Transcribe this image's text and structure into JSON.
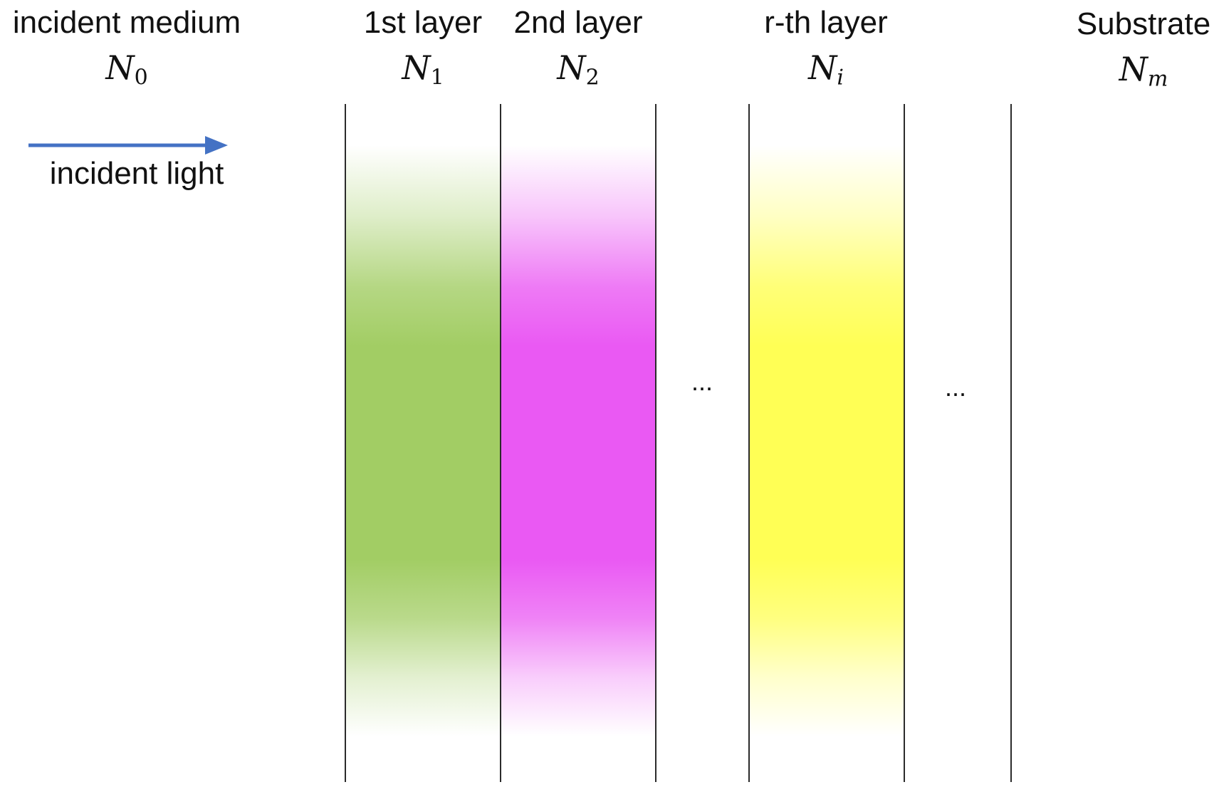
{
  "headers": {
    "incident_medium": {
      "label": "incident medium",
      "symbol": "N",
      "sub": "0"
    },
    "layer1": {
      "label": "1st layer",
      "symbol": "N",
      "sub": "1"
    },
    "layer2": {
      "label": "2nd layer",
      "symbol": "N",
      "sub": "2"
    },
    "layer_r": {
      "label": "r-th layer",
      "symbol": "N",
      "sub": "i"
    },
    "substrate": {
      "label": "Substrate",
      "symbol": "N",
      "sub": "m"
    }
  },
  "incident_light": {
    "label": "incident light",
    "arrow_color": "#4472C4"
  },
  "ellipsis": {
    "left": "...",
    "right": "..."
  },
  "colors": {
    "layer1": "#A2CD64",
    "layer2": "#EA59F3",
    "layer_r": "#FFFF55",
    "divider": "#2B2B2B"
  }
}
